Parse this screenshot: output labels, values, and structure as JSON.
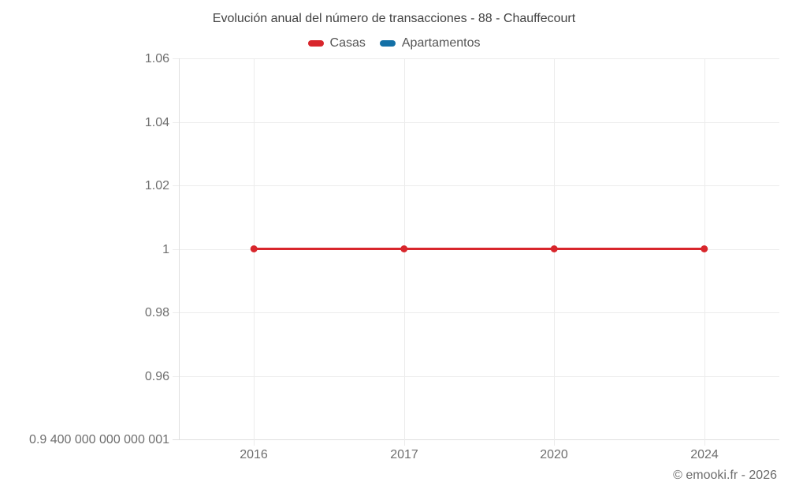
{
  "header": {
    "title": "Evolución anual del número de transacciones - 88 - Chauffecourt"
  },
  "legend": {
    "items": [
      {
        "label": "Casas",
        "color": "#d8262c"
      },
      {
        "label": "Apartamentos",
        "color": "#1370a6"
      }
    ]
  },
  "footer": {
    "credit": "© emooki.fr - 2026"
  },
  "colors": {
    "grid": "#ececec",
    "axis": "#e0e0e0",
    "tick_text": "#6e6e6e",
    "title_text": "#424242",
    "casas": "#d8262c",
    "apartamentos": "#1370a6"
  },
  "chart_data": {
    "type": "line",
    "title": "Evolución anual del número de transacciones - 88 - Chauffecourt",
    "categories": [
      "2016",
      "2017",
      "2020",
      "2024"
    ],
    "series": [
      {
        "name": "Casas",
        "color": "#d8262c",
        "values": [
          1,
          1,
          1,
          1
        ]
      },
      {
        "name": "Apartamentos",
        "color": "#1370a6",
        "values": []
      }
    ],
    "xlabel": "",
    "ylabel": "",
    "ylim": [
      0.9400000000000001,
      1.06
    ],
    "y_ticks": [
      {
        "value": 1.06,
        "label": "1.06"
      },
      {
        "value": 1.04,
        "label": "1.04"
      },
      {
        "value": 1.02,
        "label": "1.02"
      },
      {
        "value": 1,
        "label": "1"
      },
      {
        "value": 0.98,
        "label": "0.98"
      },
      {
        "value": 0.96,
        "label": "0.96"
      },
      {
        "value": 0.9400000000000001,
        "label": "0.9 400 000 000 000 001"
      }
    ],
    "grid": true,
    "legend_position": "top",
    "legend_entries": [
      "Casas",
      "Apartamentos"
    ],
    "point_style": "circle",
    "line_width": 3,
    "point_radius": 4.5
  }
}
